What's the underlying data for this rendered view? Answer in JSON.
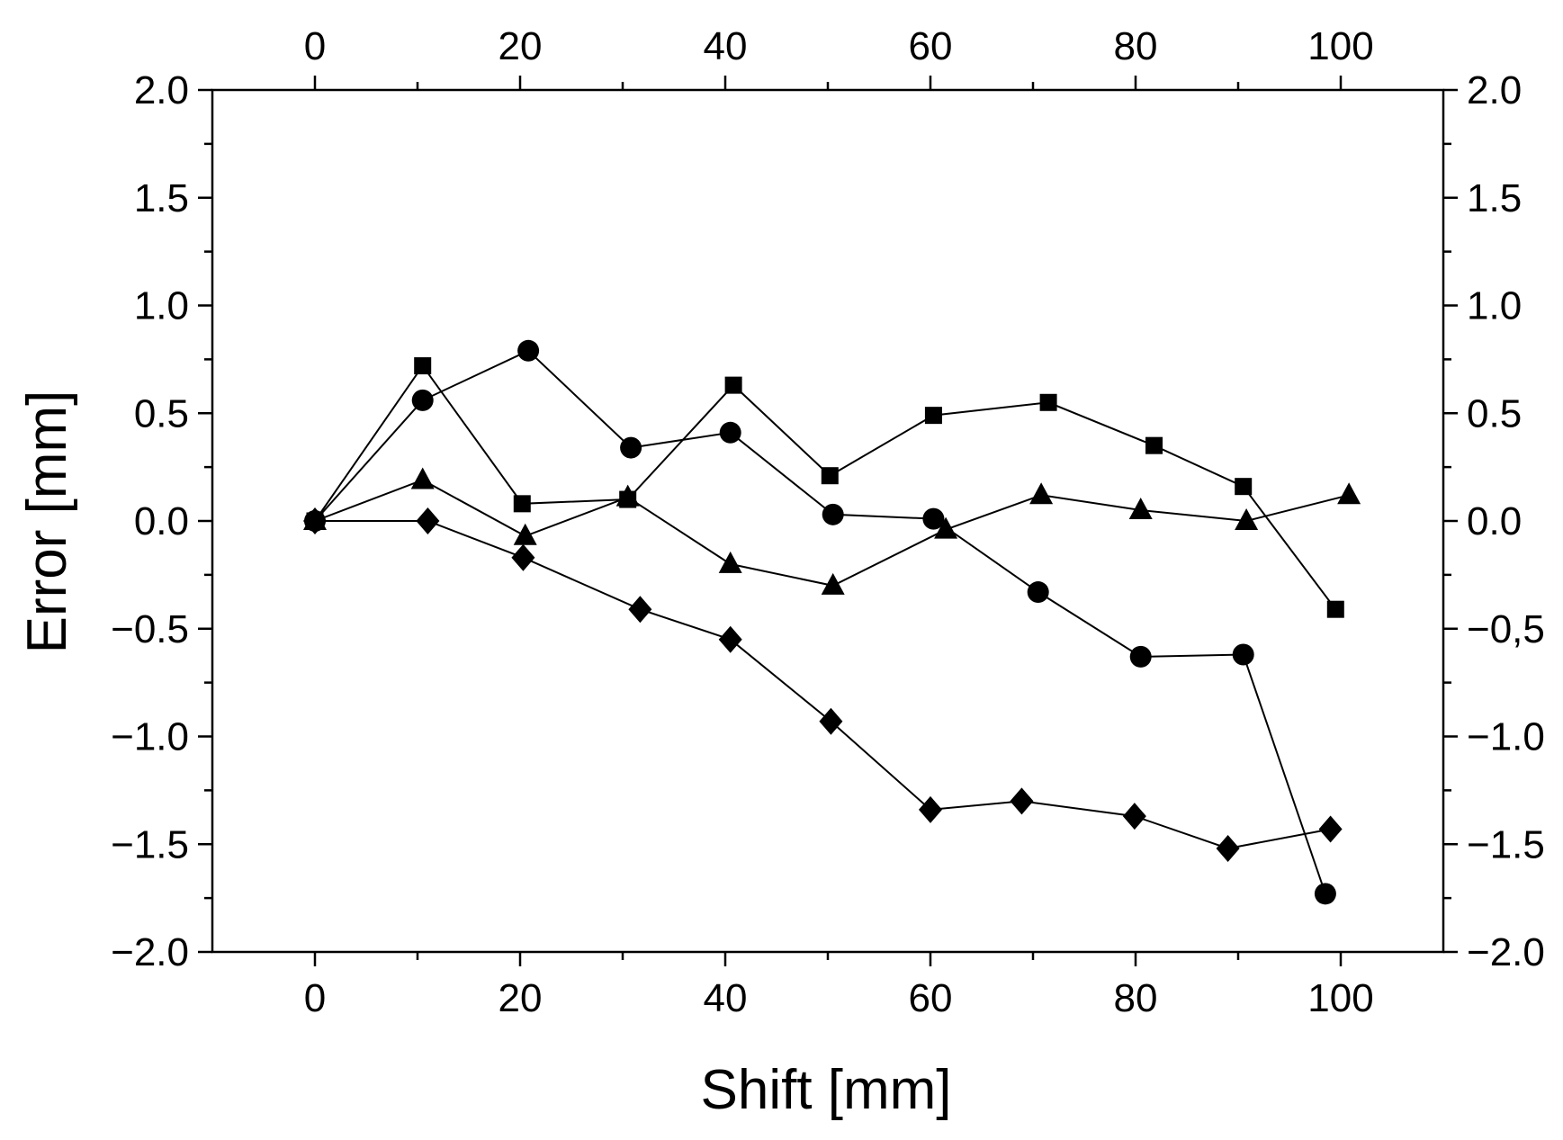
{
  "chart_data": {
    "type": "line",
    "title": "",
    "xlabel": "Shift [mm]",
    "ylabel": "Error [mm]",
    "xlim": [
      -10,
      110
    ],
    "ylim": [
      -2.0,
      2.0
    ],
    "grid": false,
    "x_ticks": [
      0,
      20,
      40,
      60,
      80,
      100
    ],
    "x_tick_labels": [
      "0",
      "20",
      "40",
      "60",
      "80",
      "100"
    ],
    "top_tick_labels": [
      "0",
      "20",
      "40",
      "60",
      "80",
      "100"
    ],
    "y_ticks": [
      2.0,
      1.5,
      1.0,
      0.5,
      0.0,
      -0.5,
      -1.0,
      -1.5,
      -2.0
    ],
    "y_tick_labels": [
      "2.0",
      "1.5",
      "1.0",
      "0.5",
      "0.0",
      "−0.5",
      "−1.0",
      "−1.5",
      "−2.0"
    ],
    "right_tick_labels": [
      "2.0",
      "1.5",
      "1.0",
      "0.5",
      "0.0",
      "−0,5",
      "−1.0",
      "−1.5",
      "−2.0"
    ],
    "series": [
      {
        "name": "squares",
        "marker": "square",
        "points": [
          [
            0,
            0.0
          ],
          [
            10.5,
            0.72
          ],
          [
            20.2,
            0.08
          ],
          [
            30.5,
            0.1
          ],
          [
            40.8,
            0.63
          ],
          [
            50.2,
            0.21
          ],
          [
            60.3,
            0.49
          ],
          [
            71.5,
            0.55
          ],
          [
            81.8,
            0.35
          ],
          [
            90.5,
            0.16
          ],
          [
            99.5,
            -0.41
          ]
        ]
      },
      {
        "name": "circles",
        "marker": "circle",
        "points": [
          [
            0,
            0.0
          ],
          [
            10.5,
            0.56
          ],
          [
            20.8,
            0.79
          ],
          [
            30.8,
            0.34
          ],
          [
            40.5,
            0.41
          ],
          [
            50.5,
            0.03
          ],
          [
            60.3,
            0.01
          ],
          [
            70.5,
            -0.33
          ],
          [
            80.5,
            -0.63
          ],
          [
            90.5,
            -0.62
          ],
          [
            98.5,
            -1.73
          ]
        ]
      },
      {
        "name": "triangles",
        "marker": "triangle",
        "points": [
          [
            0,
            0.0
          ],
          [
            10.5,
            0.19
          ],
          [
            20.5,
            -0.07
          ],
          [
            30.5,
            0.11
          ],
          [
            40.5,
            -0.2
          ],
          [
            50.5,
            -0.3
          ],
          [
            61.5,
            -0.04
          ],
          [
            70.8,
            0.12
          ],
          [
            80.5,
            0.05
          ],
          [
            90.8,
            0.0
          ],
          [
            100.8,
            0.12
          ]
        ]
      },
      {
        "name": "diamonds",
        "marker": "diamond",
        "points": [
          [
            0,
            0.0
          ],
          [
            11.0,
            0.0
          ],
          [
            20.3,
            -0.17
          ],
          [
            31.7,
            -0.41
          ],
          [
            40.5,
            -0.55
          ],
          [
            50.3,
            -0.93
          ],
          [
            60.0,
            -1.34
          ],
          [
            68.9,
            -1.3
          ],
          [
            79.9,
            -1.37
          ],
          [
            89.0,
            -1.52
          ],
          [
            99.0,
            -1.43
          ]
        ]
      }
    ]
  }
}
